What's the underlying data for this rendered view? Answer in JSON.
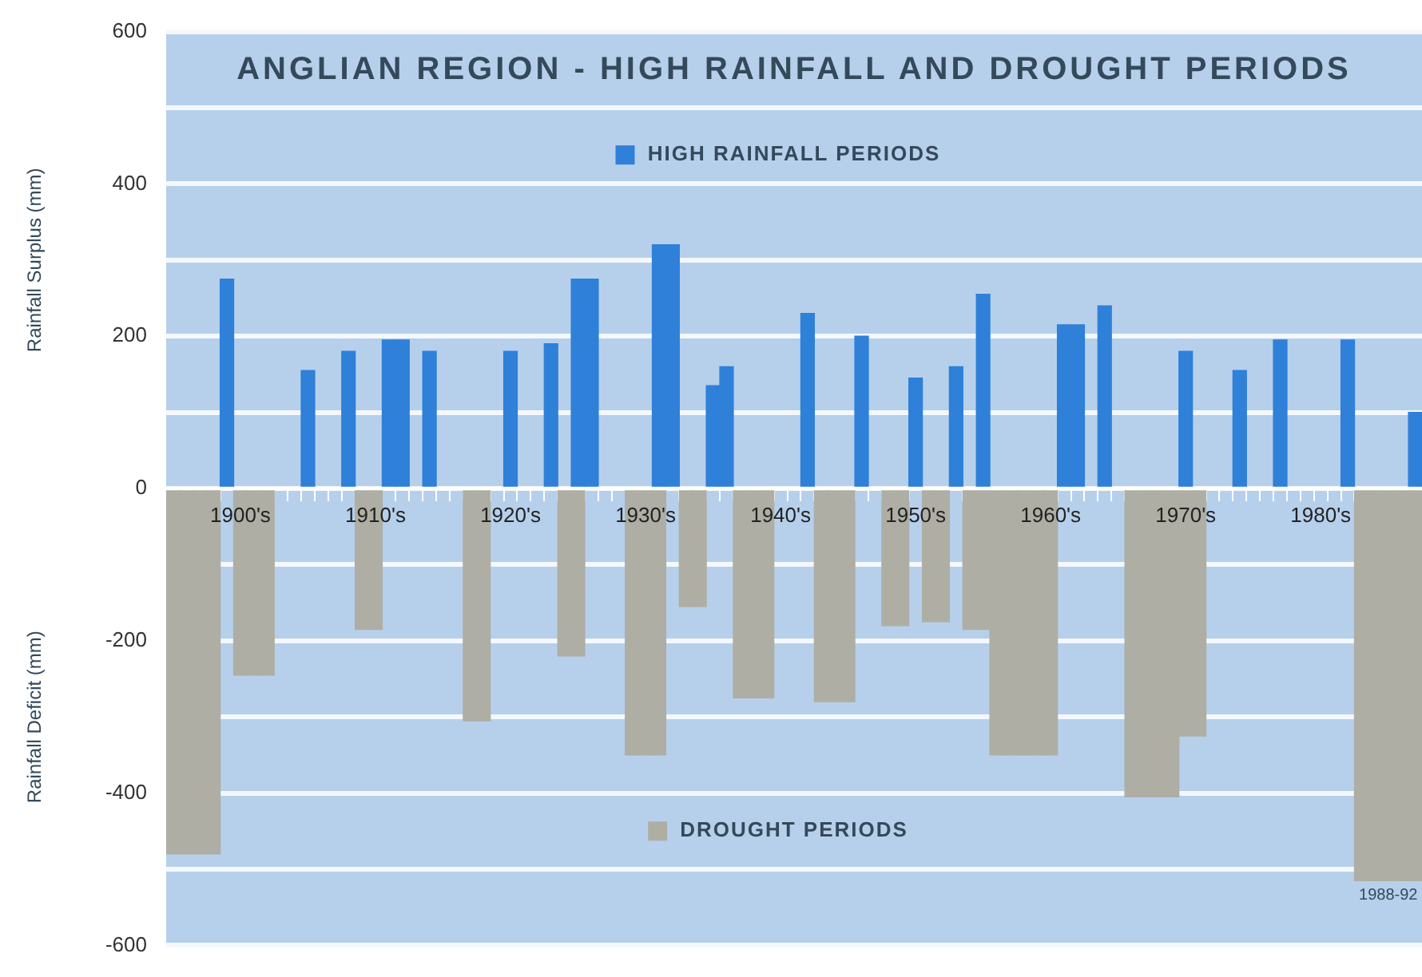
{
  "chart_data": {
    "type": "bar",
    "title": "ANGLIAN REGION - HIGH RAINFALL AND DROUGHT PERIODS",
    "ylabel": "Rainfall Surplus (mm)",
    "annotations": [
      "1988-92",
      "Rainfall Deficit (mm)"
    ],
    "categories": [
      null,
      null,
      null,
      null,
      null,
      "1900's",
      null,
      null,
      null,
      null,
      null,
      null,
      null,
      null,
      null,
      "1910's",
      null,
      null,
      null,
      null,
      null,
      null,
      null,
      null,
      null,
      "1920's",
      null,
      null,
      null,
      null,
      null,
      null,
      null,
      null,
      null,
      "1930's",
      null,
      null,
      null,
      null,
      null,
      null,
      null,
      null,
      null,
      "1940's",
      null,
      null,
      null,
      null,
      null,
      null,
      null,
      null,
      null,
      "1950's",
      null,
      null,
      null,
      null,
      null,
      null,
      null,
      null,
      null,
      "1960's",
      null,
      null,
      null,
      null,
      null,
      null,
      null,
      null,
      null,
      "1970's",
      null,
      null,
      null,
      null,
      null,
      null,
      null,
      null,
      null,
      "1980's",
      null,
      null,
      null,
      null,
      null,
      null,
      null
    ],
    "series": [
      {
        "name": "HIGH RAINFALL PERIODS",
        "color": "#2f80d8",
        "values": [
          null,
          null,
          null,
          null,
          275,
          null,
          null,
          null,
          null,
          null,
          155,
          null,
          null,
          180,
          null,
          null,
          195,
          195,
          null,
          180,
          null,
          null,
          null,
          null,
          null,
          180,
          null,
          null,
          190,
          null,
          275,
          275,
          null,
          null,
          null,
          null,
          320,
          320,
          null,
          null,
          135,
          160,
          null,
          null,
          null,
          null,
          null,
          230,
          null,
          null,
          null,
          200,
          null,
          null,
          null,
          145,
          null,
          null,
          160,
          null,
          255,
          null,
          null,
          null,
          null,
          null,
          215,
          215,
          null,
          240,
          null,
          null,
          null,
          null,
          null,
          180,
          null,
          null,
          null,
          155,
          null,
          null,
          195,
          null,
          null,
          null,
          null,
          195,
          null,
          null,
          null,
          null,
          100
        ]
      },
      {
        "name": "DROUGHT PERIODS",
        "color": "#aeaea4",
        "values": [
          -480,
          -480,
          -480,
          -480,
          null,
          -245,
          -245,
          -245,
          null,
          null,
          null,
          null,
          null,
          null,
          -185,
          -185,
          null,
          null,
          null,
          null,
          null,
          null,
          -305,
          -305,
          null,
          null,
          null,
          null,
          null,
          -220,
          -220,
          null,
          null,
          null,
          -350,
          -350,
          -350,
          null,
          -155,
          -155,
          null,
          null,
          -275,
          -275,
          -275,
          null,
          null,
          null,
          -280,
          -280,
          -280,
          null,
          null,
          -180,
          -180,
          null,
          -175,
          -175,
          null,
          -185,
          -185,
          -350,
          -350,
          -350,
          -350,
          -350,
          null,
          null,
          null,
          null,
          null,
          -405,
          -405,
          -405,
          -405,
          -325,
          -325,
          null,
          null,
          null,
          null,
          null,
          null,
          null,
          null,
          null,
          null,
          null,
          -515,
          -515,
          -515,
          -515,
          -515
        ]
      }
    ],
    "ylim": [
      -600,
      600
    ],
    "yticks": [
      -600,
      {
        "value": -500,
        "label": null
      },
      -400,
      {
        "value": -300,
        "label": null
      },
      -200,
      {
        "value": -100,
        "label": null
      },
      0,
      {
        "value": 100,
        "label": null
      },
      200,
      {
        "value": 300,
        "label": null
      },
      400,
      {
        "value": 500,
        "label": null
      },
      600
    ],
    "grid": "y",
    "legend": "center"
  }
}
